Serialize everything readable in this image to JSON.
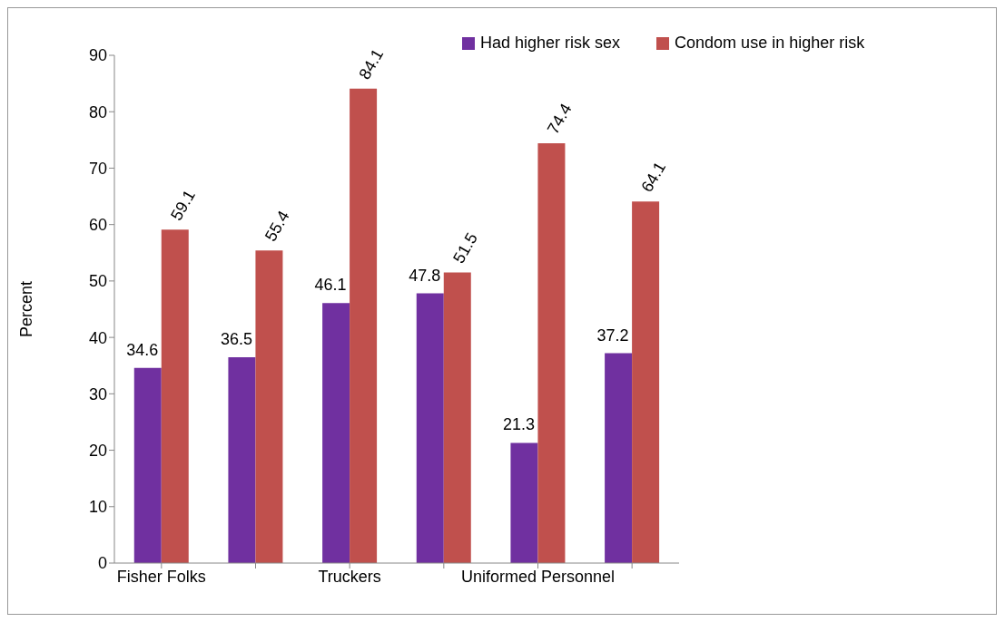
{
  "chart_data": {
    "type": "bar",
    "ylabel": "Percent",
    "categories": [
      "Fisher Folks",
      null,
      "Truckers",
      null,
      "Uniformed Personnel",
      null
    ],
    "series": [
      {
        "name": "Had higher risk sex",
        "color": "#7030a0",
        "values": [
          34.6,
          36.5,
          46.1,
          47.8,
          21.3,
          37.2
        ]
      },
      {
        "name": "Condom use in higher risk",
        "color": "#c0504d",
        "values": [
          59.1,
          55.4,
          84.1,
          51.5,
          74.4,
          64.1
        ]
      }
    ],
    "ylim": [
      0,
      90
    ],
    "yticks": [
      0,
      10,
      20,
      30,
      40,
      50,
      60,
      70,
      80,
      90
    ],
    "grid": false,
    "legend": "top right",
    "data_labels": true
  }
}
